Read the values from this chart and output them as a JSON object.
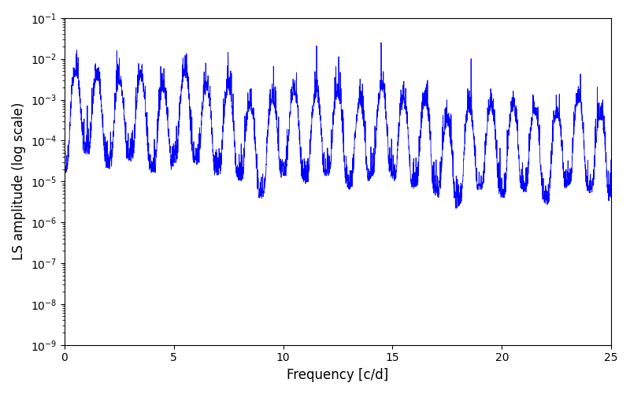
{
  "xlabel": "Frequency [c/d]",
  "ylabel": "LS amplitude (log scale)",
  "xlim": [
    0,
    25
  ],
  "ylim": [
    1e-09,
    0.1
  ],
  "line_color": "#0000ff",
  "line_width": 0.6,
  "background_color": "#ffffff",
  "xlabel_fontsize": 12,
  "ylabel_fontsize": 12,
  "figsize": [
    8.0,
    5.0
  ],
  "dpi": 100,
  "seed": 42,
  "n_points": 5000,
  "freq_max": 25.0
}
